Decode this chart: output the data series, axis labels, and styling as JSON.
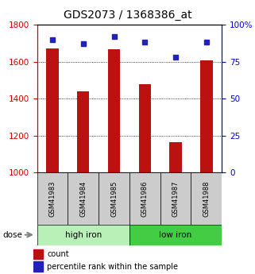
{
  "title": "GDS2073 / 1368386_at",
  "samples": [
    "GSM41983",
    "GSM41984",
    "GSM41985",
    "GSM41986",
    "GSM41987",
    "GSM41988"
  ],
  "counts": [
    1670,
    1440,
    1665,
    1480,
    1165,
    1605
  ],
  "percentiles": [
    90,
    87,
    92,
    88,
    78,
    88
  ],
  "groups": [
    {
      "label": "high iron",
      "indices": [
        0,
        1,
        2
      ],
      "color": "#b8f0b8"
    },
    {
      "label": "low iron",
      "indices": [
        3,
        4,
        5
      ],
      "color": "#44cc44"
    }
  ],
  "ylim_left": [
    1000,
    1800
  ],
  "ylim_right": [
    0,
    100
  ],
  "yticks_left": [
    1000,
    1200,
    1400,
    1600,
    1800
  ],
  "yticks_right": [
    0,
    25,
    50,
    75,
    100
  ],
  "bar_color": "#bb1111",
  "dot_color": "#2222bb",
  "title_fontsize": 10,
  "left_axis_color": "#cc0000",
  "right_axis_color": "#0000cc",
  "grid_color": "black",
  "label_box_color": "#cccccc",
  "bar_width": 0.4
}
